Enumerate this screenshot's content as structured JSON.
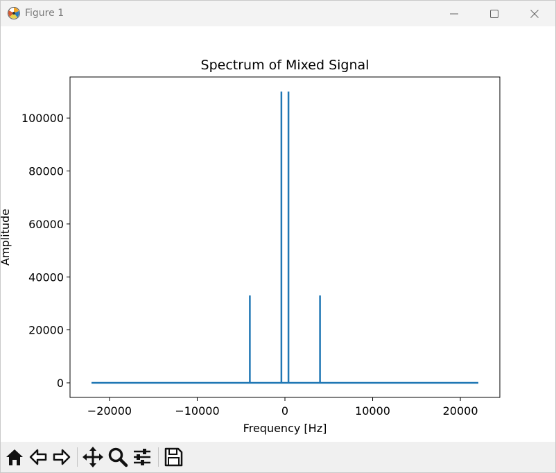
{
  "window": {
    "title": "Figure 1",
    "icons": {
      "app": "matplotlib-app-icon",
      "minimize": "minimize-icon",
      "maximize": "maximize-icon",
      "close": "close-icon"
    }
  },
  "toolbar": {
    "buttons": [
      "home-icon",
      "back-arrow-icon",
      "forward-arrow-icon",
      "pan-move-icon",
      "zoom-magnifier-icon",
      "configure-subplots-icon",
      "save-floppy-icon"
    ]
  },
  "chart_data": {
    "type": "line",
    "title": "Spectrum of Mixed Signal",
    "xlabel": "Frequency [Hz]",
    "ylabel": "Amplitude",
    "xlim": [
      -24500,
      24500
    ],
    "ylim": [
      -5500,
      115500
    ],
    "xticks": [
      -20000,
      -10000,
      0,
      10000,
      20000
    ],
    "xtick_labels": [
      "−20000",
      "−10000",
      "0",
      "10000",
      "20000"
    ],
    "yticks": [
      0,
      20000,
      40000,
      60000,
      80000,
      100000
    ],
    "ytick_labels": [
      "0",
      "20000",
      "40000",
      "60000",
      "80000",
      "100000"
    ],
    "grid": false,
    "line_color": "#1f77b4",
    "x": [
      -22050,
      -4000,
      -4000,
      -4000,
      -400,
      -400,
      -400,
      400,
      400,
      400,
      4000,
      4000,
      4000,
      22050
    ],
    "y": [
      0,
      0,
      33000,
      0,
      0,
      110000,
      0,
      0,
      110000,
      0,
      0,
      33000,
      0,
      0
    ]
  }
}
